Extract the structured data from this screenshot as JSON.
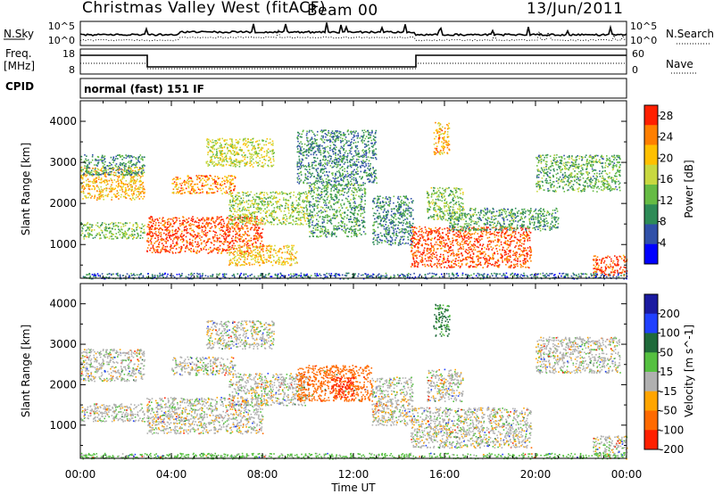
{
  "header": {
    "title": "Christmas Valley West (fitACF)",
    "beam": "Beam 00",
    "date": "13/Jun/2011"
  },
  "noise_panel": {
    "left_label": "N.Sky",
    "right_label": "N.Search",
    "left_ticks": [
      "10^5",
      "10^0"
    ],
    "right_ticks": [
      "10^5",
      "10^0"
    ]
  },
  "freq_panel": {
    "left_label_1": "Freq.",
    "left_label_2": "[MHz]",
    "right_label": "Nave",
    "left_ticks": [
      "18",
      "8"
    ],
    "right_ticks": [
      "60",
      "0"
    ]
  },
  "cpid": {
    "label": "CPID",
    "mode": "normal (fast) 151 IF"
  },
  "colors": {
    "power_scale": [
      "#0000ff",
      "#3050a8",
      "#2e8b57",
      "#66bb44",
      "#c8d840",
      "#ffc000",
      "#ff7f00",
      "#ff2000"
    ],
    "velocity_scale": [
      "#1a1aa0",
      "#2040ff",
      "#1f6a3a",
      "#55c040",
      "#b0b0b0",
      "#ffa500",
      "#ff6a00",
      "#ff2000"
    ]
  },
  "chart_data": [
    {
      "type": "heatmap",
      "quantity": "Power",
      "ylabel": "Slant Range [km]",
      "xlabel": "",
      "x_ticks": [
        "00:00",
        "04:00",
        "08:00",
        "12:00",
        "16:00",
        "20:00",
        "00:00"
      ],
      "xlim_hours": [
        0,
        24
      ],
      "y_ticks": [
        1000,
        2000,
        3000,
        4000
      ],
      "ylim": [
        180,
        4500
      ],
      "colorbar_label": "Power [dB]",
      "colorbar_ticks": [
        4,
        8,
        12,
        16,
        20,
        24,
        28
      ],
      "colorbar_range": [
        0,
        30
      ],
      "regions": [
        {
          "t0": 0.0,
          "t1": 2.8,
          "r0": 2100,
          "r1": 2900,
          "v": 21
        },
        {
          "t0": 0.0,
          "t1": 2.8,
          "r0": 1150,
          "r1": 1550,
          "v": 14
        },
        {
          "t0": 0.0,
          "t1": 2.8,
          "r0": 2700,
          "r1": 3200,
          "v": 10
        },
        {
          "t0": 2.9,
          "t1": 8.0,
          "r0": 800,
          "r1": 1700,
          "v": 27
        },
        {
          "t0": 4.0,
          "t1": 6.8,
          "r0": 2250,
          "r1": 2700,
          "v": 23
        },
        {
          "t0": 5.5,
          "t1": 8.5,
          "r0": 2900,
          "r1": 3600,
          "v": 17
        },
        {
          "t0": 6.5,
          "t1": 10.0,
          "r0": 1500,
          "r1": 2300,
          "v": 15
        },
        {
          "t0": 6.5,
          "t1": 9.5,
          "r0": 500,
          "r1": 1000,
          "v": 20
        },
        {
          "t0": 9.5,
          "t1": 13.0,
          "r0": 2500,
          "r1": 3800,
          "v": 9
        },
        {
          "t0": 10.0,
          "t1": 12.5,
          "r0": 1200,
          "r1": 2500,
          "v": 11
        },
        {
          "t0": 12.8,
          "t1": 14.6,
          "r0": 1000,
          "r1": 2200,
          "v": 9
        },
        {
          "t0": 14.5,
          "t1": 19.8,
          "r0": 450,
          "r1": 1450,
          "v": 27
        },
        {
          "t0": 15.2,
          "t1": 16.8,
          "r0": 1600,
          "r1": 2400,
          "v": 14
        },
        {
          "t0": 15.5,
          "t1": 16.2,
          "r0": 3200,
          "r1": 4000,
          "v": 22
        },
        {
          "t0": 16.2,
          "t1": 21.0,
          "r0": 1350,
          "r1": 1900,
          "v": 11
        },
        {
          "t0": 20.0,
          "t1": 23.7,
          "r0": 2300,
          "r1": 3200,
          "v": 12
        },
        {
          "t0": 22.5,
          "t1": 24.0,
          "r0": 250,
          "r1": 750,
          "v": 27
        },
        {
          "t0": 0.0,
          "t1": 24.0,
          "r0": 180,
          "r1": 320,
          "v": 7
        }
      ]
    },
    {
      "type": "heatmap",
      "quantity": "Velocity",
      "ylabel": "Slant Range [km]",
      "xlabel": "Time UT",
      "x_ticks": [
        "00:00",
        "04:00",
        "08:00",
        "12:00",
        "16:00",
        "20:00",
        "00:00"
      ],
      "xlim_hours": [
        0,
        24
      ],
      "y_ticks": [
        1000,
        2000,
        3000,
        4000
      ],
      "ylim": [
        180,
        4500
      ],
      "colorbar_label": "Velocity [m s^-1]",
      "colorbar_ticks": [
        "200",
        "100",
        "50",
        "15",
        "-15",
        "-50",
        "-100",
        "-200"
      ],
      "colorbar_range": [
        -250,
        250
      ],
      "regions": [
        {
          "t0": 0.0,
          "t1": 2.8,
          "r0": 2100,
          "r1": 2900,
          "v": 0
        },
        {
          "t0": 0.0,
          "t1": 2.8,
          "r0": 1100,
          "r1": 1550,
          "v": 0
        },
        {
          "t0": 2.9,
          "t1": 8.0,
          "r0": 800,
          "r1": 1700,
          "v": 0
        },
        {
          "t0": 4.0,
          "t1": 6.8,
          "r0": 2250,
          "r1": 2700,
          "v": 0
        },
        {
          "t0": 5.5,
          "t1": 8.5,
          "r0": 2900,
          "r1": 3600,
          "v": 0
        },
        {
          "t0": 6.5,
          "t1": 10.0,
          "r0": 1500,
          "r1": 2300,
          "v": 0
        },
        {
          "t0": 9.5,
          "t1": 12.8,
          "r0": 1600,
          "r1": 2500,
          "v": -70
        },
        {
          "t0": 11.0,
          "t1": 12.0,
          "r0": 1700,
          "r1": 2200,
          "v": -220
        },
        {
          "t0": 12.8,
          "t1": 14.6,
          "r0": 1000,
          "r1": 2200,
          "v": 0
        },
        {
          "t0": 14.5,
          "t1": 19.8,
          "r0": 450,
          "r1": 1450,
          "v": 0
        },
        {
          "t0": 15.2,
          "t1": 16.8,
          "r0": 1600,
          "r1": 2400,
          "v": 0
        },
        {
          "t0": 15.5,
          "t1": 16.2,
          "r0": 3200,
          "r1": 4000,
          "v": 60
        },
        {
          "t0": 20.0,
          "t1": 23.7,
          "r0": 2300,
          "r1": 3200,
          "v": 0
        },
        {
          "t0": 22.5,
          "t1": 24.0,
          "r0": 250,
          "r1": 750,
          "v": 0
        },
        {
          "t0": 0.0,
          "t1": 24.0,
          "r0": 180,
          "r1": 320,
          "v": 30
        }
      ]
    }
  ]
}
